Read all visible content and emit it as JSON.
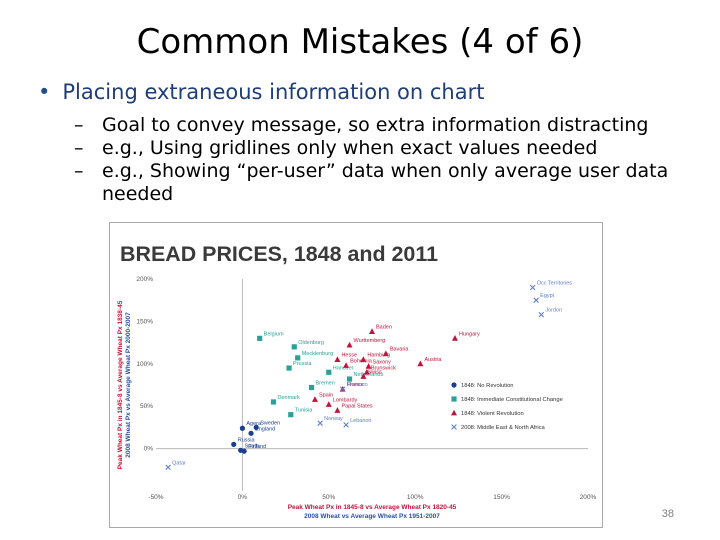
{
  "slide": {
    "title": "Common Mistakes (4 of 6)",
    "bullet": "Placing extraneous information on chart",
    "sub_bullets": [
      "Goal to convey message, so extra information  distracting",
      "e.g.,  Using gridlines only when exact values needed",
      "e.g.,  Showing “per-user” data when only average user data needed"
    ],
    "page_number": "38"
  },
  "colors": {
    "revolution_none": "#1a3f8f",
    "constitutional_change": "#2aa198",
    "violent_revolution": "#c0143c",
    "mena_2008": "#5b7fcf",
    "title_text": "#1f3d78"
  },
  "chart_data": {
    "type": "scatter",
    "title": "BREAD PRICES, 1848 and 2011",
    "xlabel": "Peak Wheat Px in 1845-8 vs Average Wheat Px 1820-45",
    "xlabel2": "2008 Wheat vs Average Wheat Px 1951-2007",
    "ylabel": "Peak Wheat Px in 1845-8 vs Average Wheat Px 1838-45",
    "ylabel2": "2008 Wheat Px vs Average Wheat Px 2000-2007",
    "xlim": [
      -0.5,
      2.0
    ],
    "ylim": [
      -0.5,
      2.0
    ],
    "x_ticks": [
      "-50%",
      "0%",
      "50%",
      "100%",
      "150%",
      "200%"
    ],
    "y_ticks": [
      "0%",
      "50%",
      "100%",
      "150%",
      "200%"
    ],
    "legend_position": "right",
    "series": [
      {
        "name": "1848: No Revolution",
        "marker": "circle",
        "color": "#1a3f8f",
        "points": [
          {
            "label": "Russia",
            "x": -0.05,
            "y": 0.05
          },
          {
            "label": "Sweden",
            "x": 0.08,
            "y": 0.25
          },
          {
            "label": "England",
            "x": 0.05,
            "y": 0.18
          },
          {
            "label": "South",
            "x": -0.01,
            "y": -0.02
          },
          {
            "label": "Finland",
            "x": 0.01,
            "y": -0.03
          },
          {
            "label": "Agera",
            "x": 0.0,
            "y": 0.24
          }
        ]
      },
      {
        "name": "1848: Immediate Constitutional Change",
        "marker": "square",
        "color": "#2aa198",
        "points": [
          {
            "label": "Belgium",
            "x": 0.1,
            "y": 1.3
          },
          {
            "label": "Oldenburg",
            "x": 0.3,
            "y": 1.2
          },
          {
            "label": "Mecklenburg",
            "x": 0.32,
            "y": 1.07
          },
          {
            "label": "Prussia",
            "x": 0.27,
            "y": 0.95
          },
          {
            "label": "Denmark",
            "x": 0.18,
            "y": 0.55
          },
          {
            "label": "Bremen",
            "x": 0.4,
            "y": 0.72
          },
          {
            "label": "Tunisia",
            "x": 0.28,
            "y": 0.4
          },
          {
            "label": "Hanover",
            "x": 0.5,
            "y": 0.9
          },
          {
            "label": "Netherlands",
            "x": 0.62,
            "y": 0.82
          }
        ]
      },
      {
        "name": "1848: Violent Revolution",
        "marker": "triangle",
        "color": "#c0143c",
        "points": [
          {
            "label": "Baden",
            "x": 0.75,
            "y": 1.38
          },
          {
            "label": "Wurttemberg",
            "x": 0.62,
            "y": 1.22
          },
          {
            "label": "Bavaria",
            "x": 0.83,
            "y": 1.12
          },
          {
            "label": "Hungary",
            "x": 1.23,
            "y": 1.3
          },
          {
            "label": "Austria",
            "x": 1.03,
            "y": 1.0
          },
          {
            "label": "Hesse",
            "x": 0.55,
            "y": 1.05
          },
          {
            "label": "Hamburg",
            "x": 0.7,
            "y": 1.05
          },
          {
            "label": "Saxony",
            "x": 0.73,
            "y": 0.97
          },
          {
            "label": "Brunswick",
            "x": 0.72,
            "y": 0.9
          },
          {
            "label": "Swiss",
            "x": 0.7,
            "y": 0.85
          },
          {
            "label": "France",
            "x": 0.58,
            "y": 0.7
          },
          {
            "label": "Lombardy",
            "x": 0.5,
            "y": 0.52
          },
          {
            "label": "Papal States",
            "x": 0.55,
            "y": 0.45
          },
          {
            "label": "Spain",
            "x": 0.42,
            "y": 0.58
          },
          {
            "label": "Bohemia",
            "x": 0.6,
            "y": 0.98
          }
        ]
      },
      {
        "name": "2008: Middle East & North Africa",
        "marker": "x",
        "color": "#5b7fcf",
        "points": [
          {
            "label": "Occ Territories",
            "x": 1.68,
            "y": 1.9
          },
          {
            "label": "Egypt",
            "x": 1.7,
            "y": 1.75
          },
          {
            "label": "Jordon",
            "x": 1.73,
            "y": 1.58
          },
          {
            "label": "Morocco",
            "x": 0.58,
            "y": 0.7
          },
          {
            "label": "Norway",
            "x": 0.45,
            "y": 0.3
          },
          {
            "label": "Lebanon",
            "x": 0.6,
            "y": 0.28
          },
          {
            "label": "Qatar",
            "x": -0.43,
            "y": -0.22
          }
        ]
      }
    ]
  }
}
